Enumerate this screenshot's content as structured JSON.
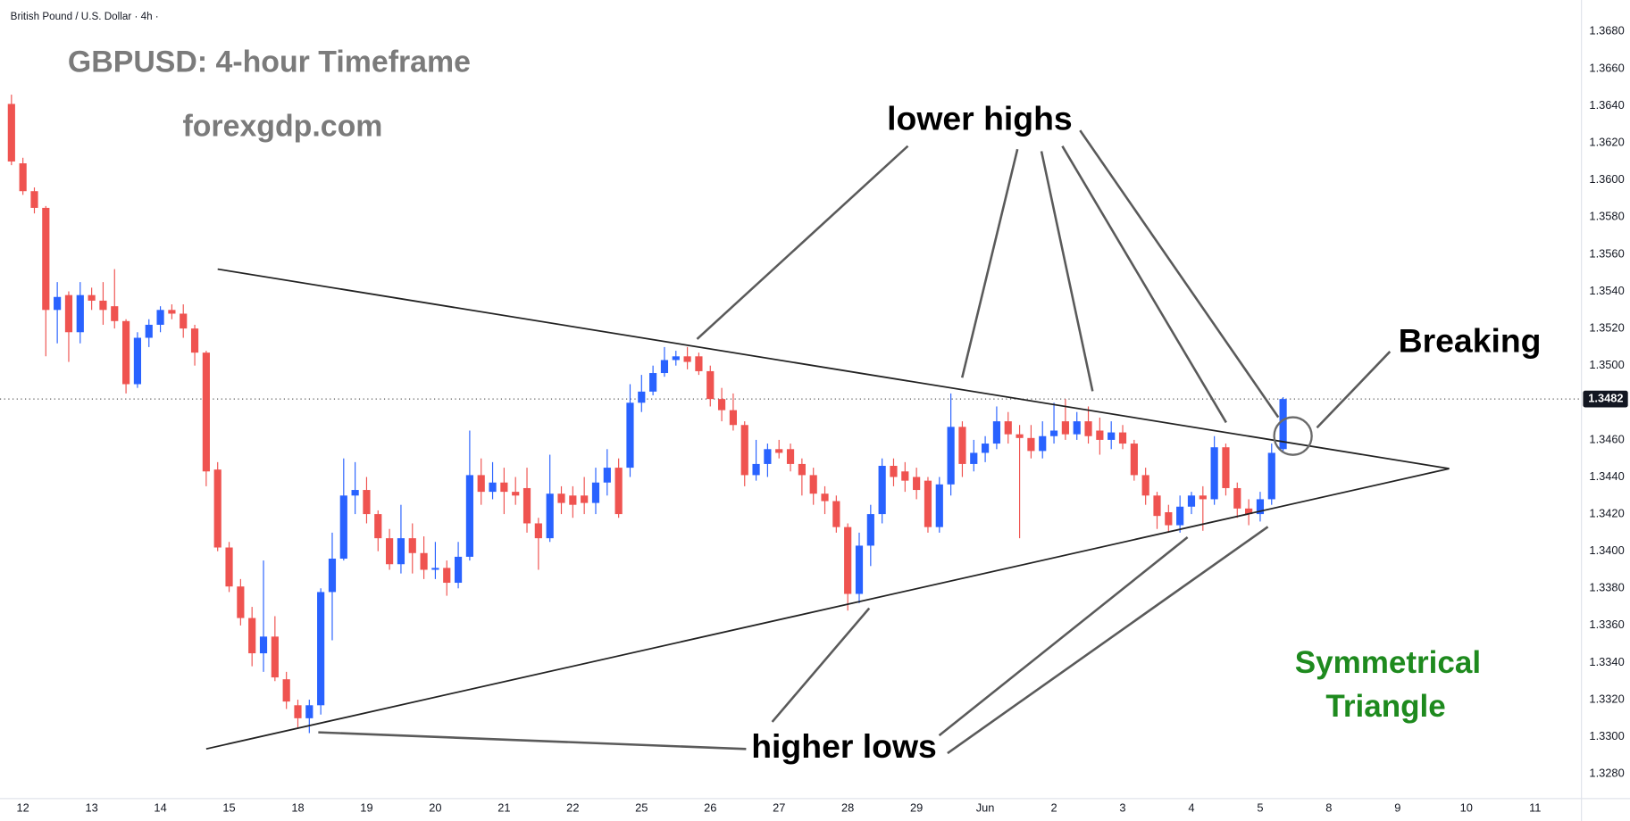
{
  "chart_data": {
    "type": "candlestick",
    "symbol_label": "British Pound / U.S. Dollar · 4h ·",
    "title": "GBPUSD: 4-hour Timeframe",
    "subtitle": "forexgdp.com",
    "annotations": [
      "lower highs",
      "Breaking",
      "higher lows",
      "Symmetrical",
      "Triangle"
    ],
    "up_color": "#2962ff",
    "down_color": "#ef5350",
    "candles": {
      "open": [
        1.3641,
        1.3609,
        1.3594,
        1.3585,
        1.353,
        1.3538,
        1.3518,
        1.3538,
        1.3535,
        1.3532,
        1.3524,
        1.349,
        1.3515,
        1.3522,
        1.353,
        1.3528,
        1.352,
        1.3507,
        1.3444,
        1.3402,
        1.3381,
        1.3364,
        1.3345,
        1.3354,
        1.3331,
        1.3317,
        1.331,
        1.3317,
        1.3378,
        1.3396,
        1.343,
        1.3433,
        1.342,
        1.3407,
        1.3393,
        1.3407,
        1.3399,
        1.339,
        1.3391,
        1.3383,
        1.3397,
        1.3441,
        1.3432,
        1.3437,
        1.3432,
        1.3434,
        1.3415,
        1.3407,
        1.3431,
        1.343,
        1.343,
        1.3426,
        1.3437,
        1.3445,
        1.3445,
        1.348,
        1.3486,
        1.3496,
        1.3503,
        1.3505,
        1.3505,
        1.3497,
        1.3482,
        1.3476,
        1.3468,
        1.3441,
        1.3447,
        1.3455,
        1.3455,
        1.3447,
        1.3441,
        1.3431,
        1.3427,
        1.3413,
        1.3377,
        1.3403,
        1.342,
        1.3446,
        1.3443,
        1.344,
        1.3438,
        1.3413,
        1.3436,
        1.3467,
        1.3447,
        1.3453,
        1.3458,
        1.347,
        1.3463,
        1.3461,
        1.3454,
        1.3462,
        1.347,
        1.3463,
        1.347,
        1.3465,
        1.346,
        1.3464,
        1.3458,
        1.3441,
        1.343,
        1.3421,
        1.3414,
        1.3424,
        1.343,
        1.3428,
        1.3456,
        1.3434,
        1.3423,
        1.342,
        1.3428,
        1.3455
      ],
      "high": [
        1.3646,
        1.3612,
        1.3596,
        1.3586,
        1.3545,
        1.354,
        1.3545,
        1.3542,
        1.3545,
        1.3552,
        1.3525,
        1.3518,
        1.3525,
        1.3532,
        1.3533,
        1.3533,
        1.3522,
        1.3508,
        1.3448,
        1.3405,
        1.3385,
        1.337,
        1.3395,
        1.3365,
        1.3335,
        1.332,
        1.332,
        1.338,
        1.341,
        1.345,
        1.3448,
        1.344,
        1.3422,
        1.3412,
        1.3425,
        1.3415,
        1.3408,
        1.3405,
        1.3395,
        1.3405,
        1.3465,
        1.345,
        1.3448,
        1.3445,
        1.344,
        1.3445,
        1.3418,
        1.3452,
        1.3435,
        1.3435,
        1.344,
        1.3445,
        1.3455,
        1.345,
        1.349,
        1.3495,
        1.35,
        1.351,
        1.3508,
        1.351,
        1.3507,
        1.35,
        1.3488,
        1.3485,
        1.347,
        1.346,
        1.3458,
        1.346,
        1.3458,
        1.345,
        1.3445,
        1.3435,
        1.343,
        1.3415,
        1.341,
        1.3425,
        1.345,
        1.345,
        1.3448,
        1.3445,
        1.344,
        1.344,
        1.3485,
        1.347,
        1.346,
        1.3462,
        1.3478,
        1.3475,
        1.3468,
        1.3468,
        1.347,
        1.348,
        1.3482,
        1.3475,
        1.3478,
        1.3472,
        1.347,
        1.3468,
        1.346,
        1.3445,
        1.3432,
        1.3425,
        1.343,
        1.3432,
        1.3435,
        1.3462,
        1.3458,
        1.3437,
        1.3428,
        1.3432,
        1.3458,
        1.3483
      ],
      "low": [
        1.3608,
        1.3592,
        1.3582,
        1.3505,
        1.3512,
        1.3502,
        1.3512,
        1.353,
        1.3522,
        1.352,
        1.3485,
        1.3488,
        1.351,
        1.3518,
        1.3525,
        1.3515,
        1.35,
        1.3435,
        1.34,
        1.3378,
        1.336,
        1.3338,
        1.3335,
        1.333,
        1.3315,
        1.3305,
        1.3302,
        1.3312,
        1.3352,
        1.3395,
        1.342,
        1.3415,
        1.34,
        1.339,
        1.3388,
        1.3388,
        1.3385,
        1.3385,
        1.3376,
        1.338,
        1.3395,
        1.3425,
        1.3428,
        1.342,
        1.3425,
        1.341,
        1.339,
        1.3405,
        1.342,
        1.3418,
        1.342,
        1.342,
        1.343,
        1.3418,
        1.344,
        1.3475,
        1.3484,
        1.3494,
        1.35,
        1.3498,
        1.3495,
        1.3478,
        1.347,
        1.3465,
        1.3435,
        1.3438,
        1.344,
        1.345,
        1.3443,
        1.343,
        1.3425,
        1.342,
        1.341,
        1.3368,
        1.3372,
        1.3392,
        1.3415,
        1.3435,
        1.3432,
        1.3428,
        1.341,
        1.341,
        1.343,
        1.344,
        1.3443,
        1.3448,
        1.3455,
        1.3458,
        1.3407,
        1.345,
        1.345,
        1.3458,
        1.346,
        1.346,
        1.3458,
        1.3452,
        1.3455,
        1.3455,
        1.3438,
        1.3425,
        1.3412,
        1.341,
        1.341,
        1.342,
        1.3411,
        1.3425,
        1.343,
        1.3418,
        1.3414,
        1.3416,
        1.3425,
        1.3453
      ],
      "close": [
        1.361,
        1.3594,
        1.3585,
        1.353,
        1.3537,
        1.3518,
        1.3538,
        1.3535,
        1.353,
        1.3524,
        1.349,
        1.3515,
        1.3522,
        1.353,
        1.3528,
        1.352,
        1.3507,
        1.3443,
        1.3402,
        1.3381,
        1.3364,
        1.3345,
        1.3354,
        1.3332,
        1.3319,
        1.331,
        1.3317,
        1.3378,
        1.3396,
        1.343,
        1.3433,
        1.342,
        1.3407,
        1.3393,
        1.3407,
        1.3399,
        1.339,
        1.3391,
        1.3383,
        1.3397,
        1.3441,
        1.3432,
        1.3437,
        1.3432,
        1.343,
        1.3415,
        1.3407,
        1.3431,
        1.3426,
        1.3425,
        1.3426,
        1.3437,
        1.3445,
        1.342,
        1.348,
        1.3486,
        1.3496,
        1.3503,
        1.3505,
        1.3502,
        1.3497,
        1.3482,
        1.3476,
        1.3468,
        1.3441,
        1.3447,
        1.3455,
        1.3453,
        1.3447,
        1.3441,
        1.3431,
        1.3427,
        1.3413,
        1.3377,
        1.3403,
        1.342,
        1.3446,
        1.344,
        1.3438,
        1.3433,
        1.3413,
        1.3436,
        1.3467,
        1.3447,
        1.3453,
        1.3458,
        1.347,
        1.3463,
        1.3461,
        1.3454,
        1.3462,
        1.3465,
        1.3463,
        1.347,
        1.3462,
        1.346,
        1.3464,
        1.3458,
        1.3441,
        1.343,
        1.3419,
        1.3414,
        1.3424,
        1.343,
        1.3428,
        1.3456,
        1.3434,
        1.3423,
        1.342,
        1.3428,
        1.3453,
        1.3482
      ]
    },
    "last_price": 1.3482,
    "trendlines": [
      {
        "points": [
          [
            18,
            1.3552
          ],
          [
            125.5,
            1.34445
          ]
        ]
      },
      {
        "points": [
          [
            17,
            1.32935
          ],
          [
            125.5,
            1.34445
          ]
        ]
      }
    ],
    "xlim": [
      -1,
      137
    ],
    "xticks": [
      {
        "value": 1,
        "label": "12"
      },
      {
        "value": 7,
        "label": "13"
      },
      {
        "value": 13,
        "label": "14"
      },
      {
        "value": 19,
        "label": "15"
      },
      {
        "value": 25,
        "label": "18"
      },
      {
        "value": 31,
        "label": "19"
      },
      {
        "value": 37,
        "label": "20"
      },
      {
        "value": 43,
        "label": "21"
      },
      {
        "value": 49,
        "label": "22"
      },
      {
        "value": 55,
        "label": "25"
      },
      {
        "value": 61,
        "label": "26"
      },
      {
        "value": 67,
        "label": "27"
      },
      {
        "value": 73,
        "label": "28"
      },
      {
        "value": 79,
        "label": "29"
      },
      {
        "value": 85,
        "label": "Jun"
      },
      {
        "value": 91,
        "label": "2"
      },
      {
        "value": 97,
        "label": "3"
      },
      {
        "value": 103,
        "label": "4"
      },
      {
        "value": 109,
        "label": "5"
      },
      {
        "value": 115,
        "label": "8"
      },
      {
        "value": 121,
        "label": "9"
      },
      {
        "value": 127,
        "label": "10"
      },
      {
        "value": 133,
        "label": "11"
      }
    ],
    "ylim": [
      1.3267,
      1.3697
    ],
    "yticks": [
      {
        "value": 1.328,
        "label": "1.3280"
      },
      {
        "value": 1.33,
        "label": "1.3300"
      },
      {
        "value": 1.332,
        "label": "1.3320"
      },
      {
        "value": 1.334,
        "label": "1.3340"
      },
      {
        "value": 1.336,
        "label": "1.3360"
      },
      {
        "value": 1.338,
        "label": "1.3380"
      },
      {
        "value": 1.34,
        "label": "1.3400"
      },
      {
        "value": 1.342,
        "label": "1.3420"
      },
      {
        "value": 1.344,
        "label": "1.3440"
      },
      {
        "value": 1.346,
        "label": "1.3460"
      },
      {
        "value": 1.348,
        "label": "1.3480"
      },
      {
        "value": 1.35,
        "label": "1.3500"
      },
      {
        "value": 1.352,
        "label": "1.3520"
      },
      {
        "value": 1.354,
        "label": "1.3540"
      },
      {
        "value": 1.356,
        "label": "1.3560"
      },
      {
        "value": 1.358,
        "label": "1.3580"
      },
      {
        "value": 1.36,
        "label": "1.3600"
      },
      {
        "value": 1.362,
        "label": "1.3620"
      },
      {
        "value": 1.364,
        "label": "1.3640"
      },
      {
        "value": 1.366,
        "label": "1.3660"
      },
      {
        "value": 1.368,
        "label": "1.3680"
      }
    ],
    "grid": false
  }
}
